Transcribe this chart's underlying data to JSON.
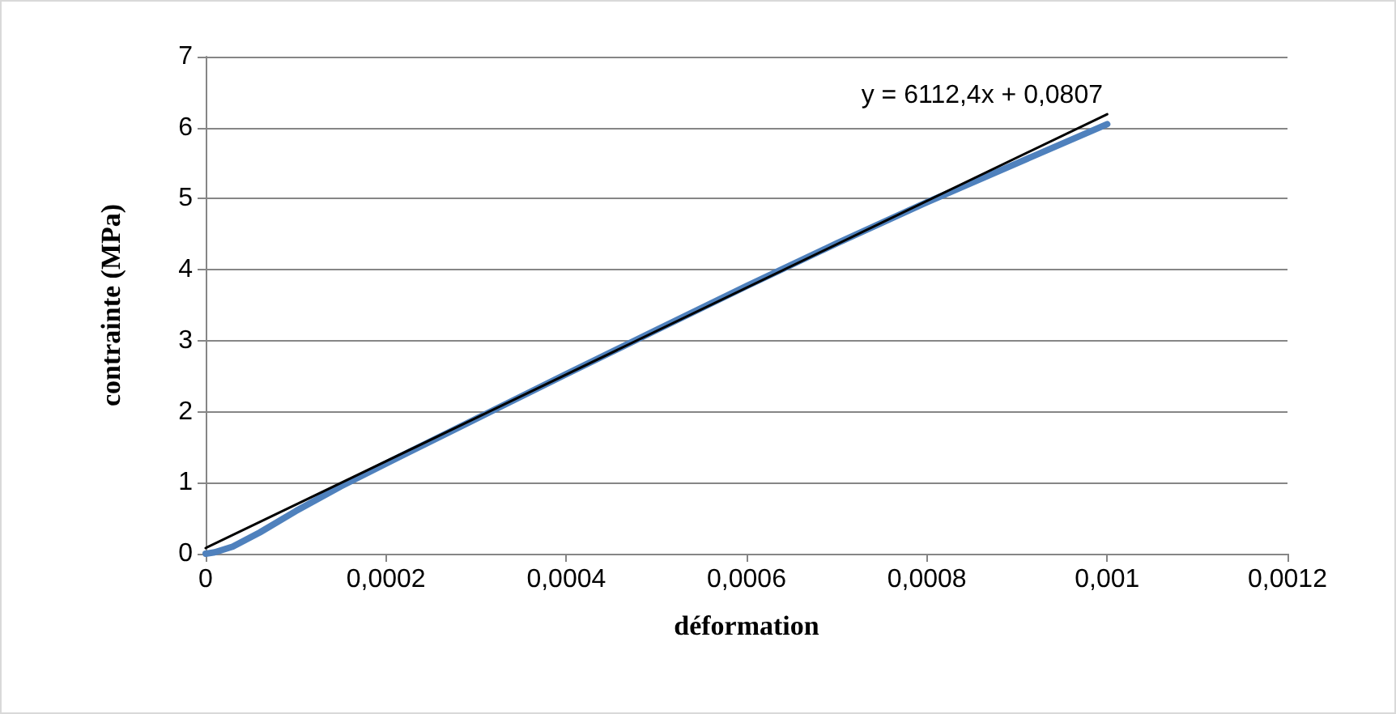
{
  "chart_data": {
    "type": "line",
    "xlabel": "déformation",
    "ylabel": "contrainte (MPa)",
    "xlim": [
      0,
      0.0012
    ],
    "xticks": [
      {
        "value": 0,
        "label": "0"
      },
      {
        "value": 0.0002,
        "label": "0,0002"
      },
      {
        "value": 0.0004,
        "label": "0,0004"
      },
      {
        "value": 0.0006,
        "label": "0,0006"
      },
      {
        "value": 0.0008,
        "label": "0,0008"
      },
      {
        "value": 0.001,
        "label": "0,001"
      },
      {
        "value": 0.0012,
        "label": "0,0012"
      }
    ],
    "ylim": [
      0,
      7
    ],
    "yticks": [
      0,
      1,
      2,
      3,
      4,
      5,
      6,
      7
    ],
    "grid": "y",
    "marker": "none",
    "series": [
      {
        "color": "#4f81bd",
        "x": [
          0,
          1e-05,
          3e-05,
          6e-05,
          0.0001,
          0.00015,
          0.0002,
          0.0003,
          0.0004,
          0.0005,
          0.0006,
          0.0007,
          0.0008,
          0.0009,
          0.001
        ],
        "values": [
          0,
          0.02,
          0.1,
          0.3,
          0.6,
          0.95,
          1.27,
          1.9,
          2.53,
          3.15,
          3.77,
          4.37,
          4.95,
          5.5,
          6.05
        ]
      },
      {
        "color": "#000000",
        "x": [
          0,
          0.001
        ],
        "values": [
          0.08,
          6.19
        ]
      }
    ],
    "annotations": [
      "y = 6112,4x + 0,0807"
    ]
  }
}
